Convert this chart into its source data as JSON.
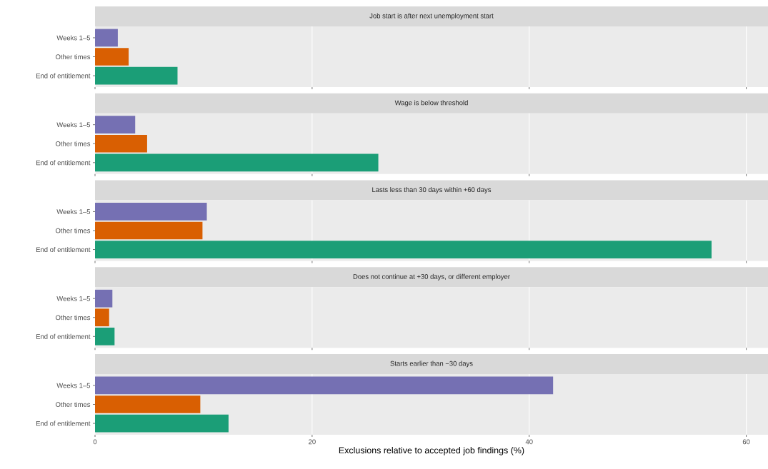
{
  "chart_data": [
    {
      "type": "bar",
      "orientation": "horizontal",
      "title": "Job start is after next unemployment start",
      "categories": [
        "Weeks 1–5",
        "Other times",
        "End of entitlement"
      ],
      "values": [
        2.1,
        3.1,
        7.6
      ],
      "colors": [
        "#7570b3",
        "#d95f02",
        "#1b9e77"
      ],
      "xlim": [
        0,
        62
      ],
      "xticks": [
        0,
        20,
        40,
        60
      ],
      "grid": "x",
      "tick_labels": "y"
    },
    {
      "type": "bar",
      "orientation": "horizontal",
      "title": "Wage is below threshold",
      "categories": [
        "Weeks 1–5",
        "Other times",
        "End of entitlement"
      ],
      "values": [
        3.7,
        4.8,
        26.1
      ],
      "colors": [
        "#7570b3",
        "#d95f02",
        "#1b9e77"
      ],
      "xlim": [
        0,
        62
      ],
      "xticks": [
        0,
        20,
        40,
        60
      ],
      "grid": "x",
      "tick_labels": "y"
    },
    {
      "type": "bar",
      "orientation": "horizontal",
      "title": "Lasts less than 30 days within +60 days",
      "categories": [
        "Weeks 1–5",
        "Other times",
        "End of entitlement"
      ],
      "values": [
        10.3,
        9.9,
        56.8
      ],
      "colors": [
        "#7570b3",
        "#d95f02",
        "#1b9e77"
      ],
      "xlim": [
        0,
        62
      ],
      "xticks": [
        0,
        20,
        40,
        60
      ],
      "grid": "x",
      "tick_labels": "y"
    },
    {
      "type": "bar",
      "orientation": "horizontal",
      "title": "Does not continue at +30 days, or different employer",
      "categories": [
        "Weeks 1–5",
        "Other times",
        "End of entitlement"
      ],
      "values": [
        1.6,
        1.3,
        1.8
      ],
      "colors": [
        "#7570b3",
        "#d95f02",
        "#1b9e77"
      ],
      "xlim": [
        0,
        62
      ],
      "xticks": [
        0,
        20,
        40,
        60
      ],
      "grid": "x",
      "tick_labels": "y"
    },
    {
      "type": "bar",
      "orientation": "horizontal",
      "title": "Starts earlier than −30 days",
      "xlabel": "Exclusions relative to accepted job findings (%)",
      "categories": [
        "Weeks 1–5",
        "Other times",
        "End of entitlement"
      ],
      "values": [
        42.2,
        9.7,
        12.3
      ],
      "colors": [
        "#7570b3",
        "#d95f02",
        "#1b9e77"
      ],
      "xlim": [
        0,
        62
      ],
      "xticks": [
        0,
        20,
        40,
        60
      ],
      "grid": "x"
    }
  ]
}
